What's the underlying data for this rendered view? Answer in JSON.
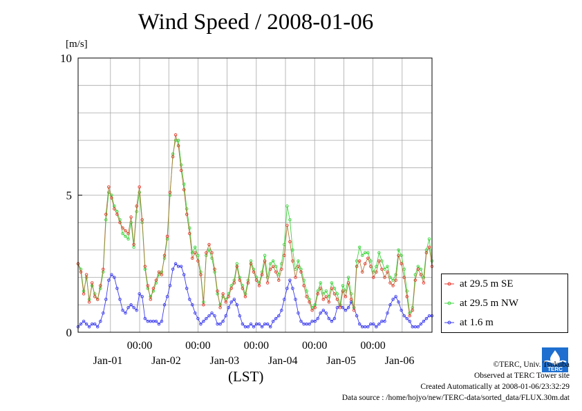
{
  "chart_data": {
    "type": "line",
    "title": "Wind Speed / 2008-01-06",
    "ylabel": "[m/s]",
    "xlabel": "(LST)",
    "ylim": [
      0,
      10
    ],
    "y_ticks": [
      "0",
      "5",
      "10"
    ],
    "x_tick_time_label": "00:00",
    "x_day_labels": [
      "Jan-01",
      "Jan-02",
      "Jan-03",
      "Jan-04",
      "Jan-05",
      "Jan-06"
    ],
    "grid": true,
    "legend_position": "right",
    "hours_per_point": 1,
    "series": [
      {
        "name": "at 29.5 m SE",
        "color": "#e8352b",
        "values": [
          2.5,
          2.2,
          1.4,
          2.1,
          1.1,
          1.8,
          1.3,
          1.2,
          1.7,
          2.3,
          4.3,
          5.3,
          4.9,
          4.5,
          4.3,
          4.0,
          3.8,
          3.7,
          3.6,
          4.2,
          3.2,
          4.6,
          5.3,
          4.1,
          2.4,
          1.7,
          1.2,
          1.6,
          1.9,
          2.2,
          2.1,
          2.8,
          3.5,
          5.1,
          6.4,
          7.2,
          6.8,
          5.9,
          5.2,
          4.3,
          3.6,
          2.7,
          2.9,
          2.6,
          2.1,
          1.0,
          2.9,
          3.2,
          2.9,
          2.3,
          1.5,
          0.9,
          1.4,
          1.1,
          1.3,
          1.6,
          1.8,
          2.4,
          1.9,
          1.6,
          1.3,
          1.8,
          2.5,
          2.2,
          1.9,
          1.7,
          2.1,
          2.6,
          1.8,
          2.3,
          2.4,
          2.2,
          1.9,
          2.3,
          2.8,
          3.9,
          3.3,
          2.6,
          2.0,
          2.4,
          2.2,
          1.7,
          1.3,
          1.1,
          0.8,
          0.9,
          1.4,
          1.6,
          1.2,
          1.3,
          1.1,
          1.6,
          1.4,
          1.2,
          0.9,
          1.5,
          1.3,
          1.8,
          1.2,
          0.8,
          2.4,
          2.6,
          2.2,
          2.5,
          2.7,
          2.4,
          2.0,
          2.2,
          2.6,
          2.3,
          2.0,
          2.2,
          1.8,
          1.7,
          1.9,
          2.8,
          2.5,
          2.0,
          1.3,
          0.6,
          0.8,
          1.9,
          2.3,
          2.1,
          1.8,
          2.9,
          3.1,
          2.4
        ]
      },
      {
        "name": "at 29.5 m NW",
        "color": "#3ed43e",
        "values": [
          2.5,
          2.3,
          1.5,
          2.0,
          1.2,
          1.7,
          1.4,
          1.2,
          1.6,
          2.2,
          4.1,
          5.1,
          5.0,
          4.6,
          4.4,
          4.1,
          3.6,
          3.5,
          3.4,
          4.0,
          3.1,
          4.4,
          5.1,
          4.0,
          2.3,
          1.6,
          1.3,
          1.5,
          1.8,
          2.1,
          2.2,
          2.7,
          3.4,
          5.0,
          6.5,
          7.0,
          7.0,
          6.1,
          5.4,
          4.5,
          3.8,
          2.9,
          3.1,
          2.8,
          2.2,
          1.1,
          2.8,
          3.0,
          2.7,
          2.2,
          1.4,
          1.0,
          1.3,
          1.2,
          1.4,
          1.7,
          1.9,
          2.5,
          2.0,
          1.7,
          1.4,
          1.9,
          2.6,
          2.3,
          2.0,
          1.8,
          2.2,
          2.8,
          2.0,
          2.5,
          2.6,
          2.4,
          2.1,
          2.5,
          3.2,
          4.6,
          4.1,
          3.0,
          2.3,
          2.6,
          2.3,
          1.9,
          1.5,
          1.2,
          0.9,
          1.0,
          1.5,
          1.8,
          1.4,
          1.5,
          1.3,
          1.8,
          1.6,
          1.4,
          1.0,
          1.7,
          1.5,
          2.0,
          1.4,
          0.9,
          2.6,
          3.1,
          2.8,
          2.9,
          2.9,
          2.6,
          2.2,
          2.4,
          2.9,
          2.6,
          2.3,
          2.4,
          2.0,
          1.9,
          2.1,
          3.0,
          2.8,
          2.3,
          1.5,
          0.7,
          0.9,
          2.1,
          2.4,
          2.3,
          2.0,
          3.0,
          3.4,
          2.6
        ]
      },
      {
        "name": "at 1.6 m",
        "color": "#3a3aee",
        "values": [
          0.2,
          0.3,
          0.4,
          0.3,
          0.2,
          0.3,
          0.3,
          0.2,
          0.4,
          0.7,
          1.2,
          1.9,
          2.1,
          2.0,
          1.6,
          1.2,
          0.8,
          0.7,
          0.9,
          1.0,
          0.9,
          0.8,
          1.4,
          1.3,
          0.5,
          0.4,
          0.4,
          0.4,
          0.4,
          0.3,
          0.4,
          1.0,
          1.3,
          1.7,
          2.3,
          2.5,
          2.4,
          2.4,
          2.1,
          1.6,
          1.2,
          1.0,
          0.7,
          0.5,
          0.3,
          0.4,
          0.5,
          0.6,
          0.7,
          0.6,
          0.3,
          0.3,
          0.4,
          0.6,
          0.9,
          1.1,
          1.2,
          1.0,
          0.6,
          0.3,
          0.2,
          0.2,
          0.3,
          0.2,
          0.3,
          0.3,
          0.2,
          0.3,
          0.3,
          0.2,
          0.4,
          0.5,
          0.6,
          0.8,
          1.2,
          1.6,
          1.9,
          1.6,
          1.2,
          0.7,
          0.4,
          0.3,
          0.3,
          0.3,
          0.4,
          0.4,
          0.5,
          0.7,
          0.8,
          0.7,
          0.5,
          0.4,
          0.5,
          0.9,
          1.0,
          0.9,
          0.8,
          0.9,
          1.1,
          0.9,
          0.6,
          0.3,
          0.2,
          0.2,
          0.2,
          0.3,
          0.3,
          0.2,
          0.3,
          0.4,
          0.4,
          0.7,
          1.0,
          1.2,
          1.3,
          1.1,
          0.8,
          0.6,
          0.5,
          0.4,
          0.2,
          0.2,
          0.2,
          0.3,
          0.4,
          0.5,
          0.6,
          0.6
        ]
      }
    ]
  },
  "footer": {
    "copyright": "©TERC, Univ. Tsukuba",
    "site": "Observed at TERC Tower site",
    "created": "Created Automatically at 2008-01-06/23:32:29",
    "source": "Data source : /home/hojyo/new/TERC-data/sorted_data/FLUX.30m.dat"
  },
  "logo_text": "TERC"
}
